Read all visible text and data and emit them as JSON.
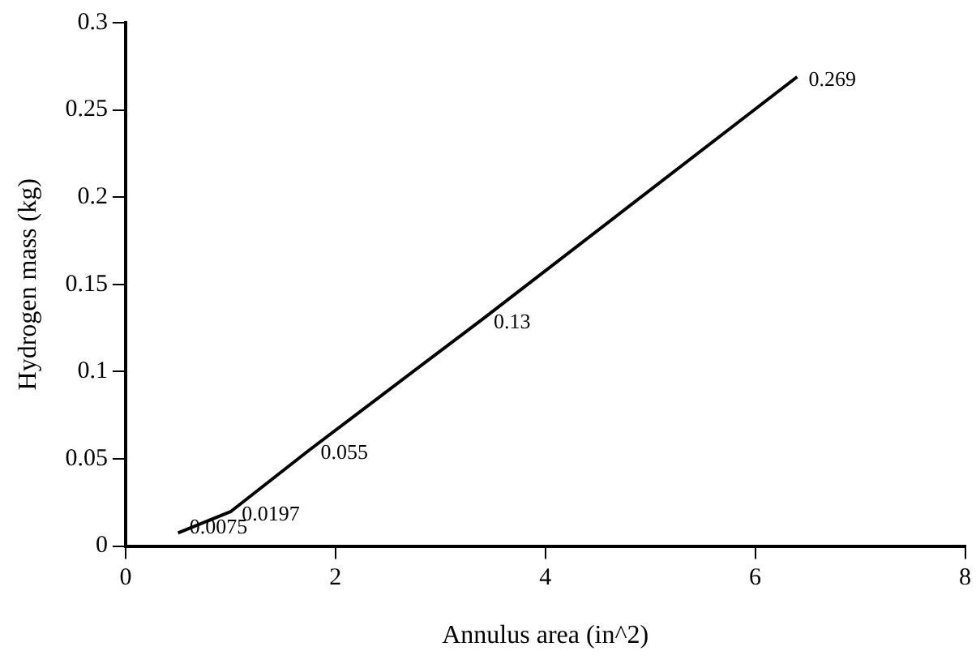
{
  "chart_data": {
    "type": "line",
    "xlabel": "Annulus area (in^2)",
    "ylabel": "Hydrogen mass (kg)",
    "x": [
      0.5,
      1.0,
      1.75,
      3.4,
      6.4
    ],
    "series": [
      {
        "color": "#000000",
        "values": [
          0.0075,
          0.0197,
          0.055,
          0.13,
          0.269
        ]
      }
    ],
    "xlim": [
      0,
      8
    ],
    "xticks": [
      0,
      2,
      4,
      6,
      8
    ],
    "ylim": [
      0,
      0.3
    ],
    "yticks": [
      0,
      0.05,
      0.1,
      0.15,
      0.2,
      0.25,
      0.3
    ],
    "data_labels": true,
    "grid": false,
    "legend": false,
    "marker": "none",
    "line_style": "solid"
  }
}
